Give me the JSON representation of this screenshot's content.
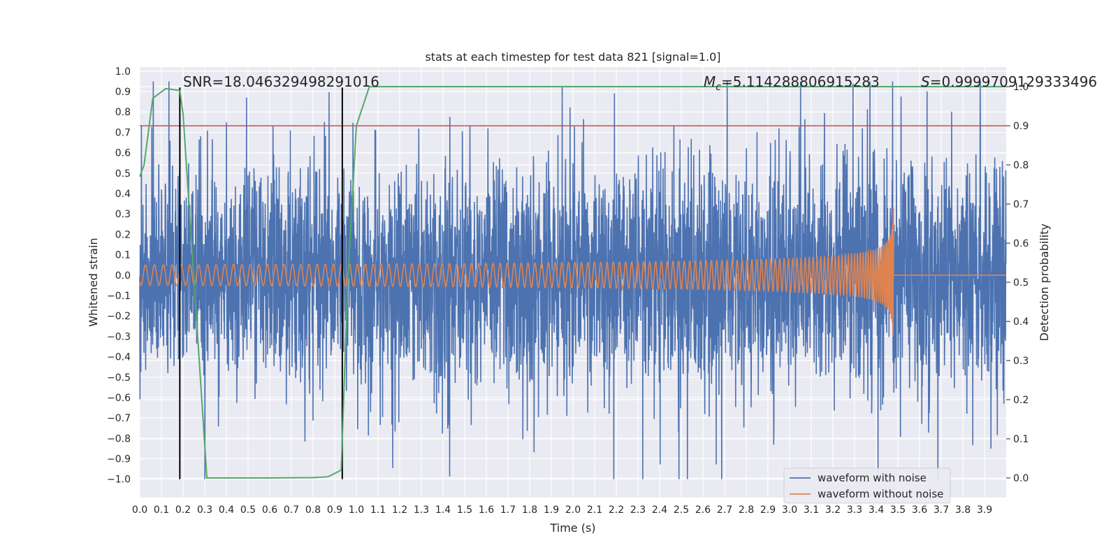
{
  "chart_data": {
    "type": "line",
    "title": "stats at each timestep for test data 821 [signal=1.0]",
    "xlabel": "Time (s)",
    "ylabel_left": "Whitened strain",
    "ylabel_right": "Detection probability",
    "xlim": [
      0.0,
      4.0
    ],
    "ylim_left": [
      -1.09,
      1.02
    ],
    "ylim_right": [
      -0.05,
      1.05
    ],
    "x_ticks": [
      "0.0",
      "0.1",
      "0.2",
      "0.3",
      "0.4",
      "0.5",
      "0.6",
      "0.7",
      "0.8",
      "0.9",
      "1.0",
      "1.1",
      "1.2",
      "1.3",
      "1.4",
      "1.5",
      "1.6",
      "1.7",
      "1.8",
      "1.9",
      "2.0",
      "2.1",
      "2.2",
      "2.3",
      "2.4",
      "2.5",
      "2.6",
      "2.7",
      "2.8",
      "2.9",
      "3.0",
      "3.1",
      "3.2",
      "3.3",
      "3.4",
      "3.5",
      "3.6",
      "3.7",
      "3.8",
      "3.9"
    ],
    "y_left_ticks": [
      "1.0",
      "0.9",
      "0.8",
      "0.7",
      "0.6",
      "0.5",
      "0.4",
      "0.3",
      "0.2",
      "0.1",
      "0.0",
      "−0.1",
      "−0.2",
      "−0.3",
      "−0.4",
      "−0.5",
      "−0.6",
      "−0.7",
      "−0.8",
      "−0.9",
      "−1.0"
    ],
    "y_right_ticks": [
      "1.0",
      "0.9",
      "0.8",
      "0.7",
      "0.6",
      "0.5",
      "0.4",
      "0.3",
      "0.2",
      "0.1",
      "0.0"
    ],
    "grid": true,
    "legend_position": "bottom-right",
    "annotations": {
      "snr": "SNR=18.046329498291016",
      "mc_symbol": "M",
      "mc_sub": "c",
      "mc_value": "=5.114288806915283",
      "s_symbol": "S",
      "s_value": "=0.9999709129333496"
    },
    "series": [
      {
        "name": "waveform with noise",
        "axis": "left",
        "color": "#4c72b0",
        "description": "whitened strain noise, amplitude typically within ±0.4 with spikes to ±0.9"
      },
      {
        "name": "waveform without noise",
        "axis": "left",
        "color": "#dd8452",
        "chirp": {
          "start_time": 0.0,
          "merger_time": 3.48,
          "start_amplitude": 0.05,
          "peak_amplitude": 0.54,
          "start_freq_hz": 24,
          "post_merger_value": 0.0
        }
      },
      {
        "name": "",
        "axis": "right",
        "color": "#55a868",
        "x": [
          0.0,
          0.02,
          0.06,
          0.12,
          0.185,
          0.2,
          0.31,
          0.4,
          0.6,
          0.8,
          0.87,
          0.93,
          0.96,
          1.0,
          1.06,
          1.5,
          2.0,
          3.0,
          4.0
        ],
        "values": [
          0.77,
          0.8,
          0.97,
          0.995,
          0.99,
          0.93,
          0.0,
          0.0,
          0.0,
          0.001,
          0.003,
          0.02,
          0.5,
          0.9,
          1.0,
          1.0,
          1.0,
          1.0,
          1.0
        ]
      }
    ],
    "threshold_line": {
      "axis": "right",
      "value": 0.9,
      "color": "#c44e52"
    },
    "vertical_markers": {
      "axis": "left",
      "x": [
        0.185,
        0.935
      ],
      "ymin": -1.0,
      "ymax": 0.92,
      "color": "#000000"
    }
  }
}
